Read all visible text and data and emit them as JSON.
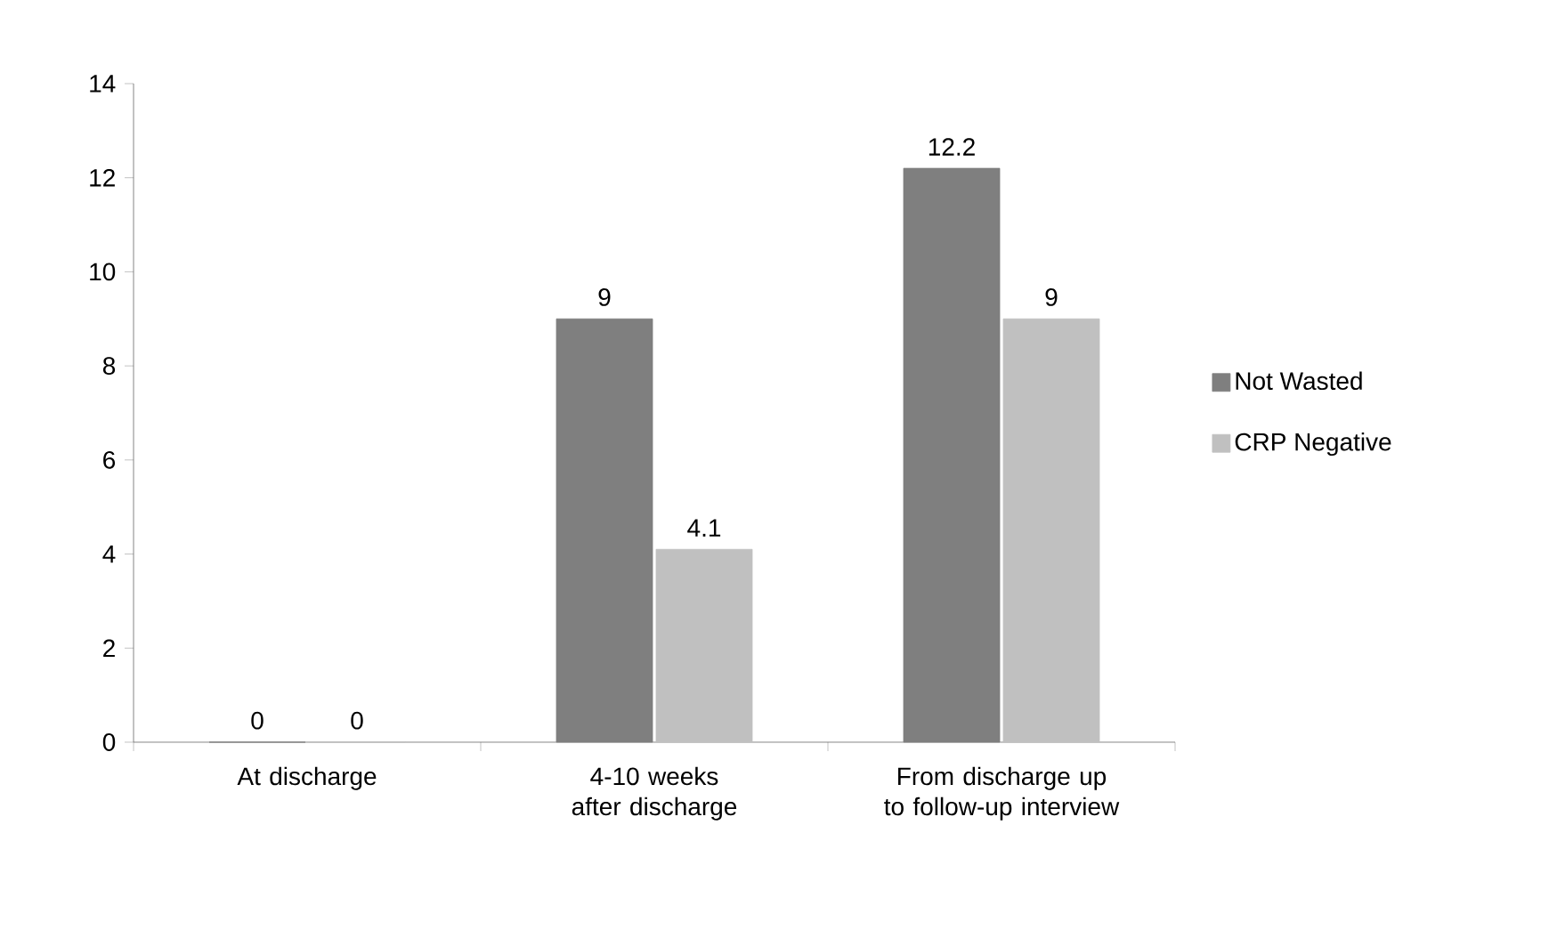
{
  "chart_data": {
    "type": "bar",
    "categories": [
      "At discharge",
      "4-10 weeks after discharge",
      "From discharge up to follow-up interview"
    ],
    "series": [
      {
        "name": "Not Wasted",
        "color": "#7f7f7f",
        "values": [
          0,
          9,
          12.2
        ]
      },
      {
        "name": "CRP Negative",
        "color": "#c0c0c0",
        "values": [
          0,
          4.1,
          9
        ]
      }
    ],
    "ylim": [
      0,
      14
    ],
    "yticks": [
      0,
      2,
      4,
      6,
      8,
      10,
      12,
      14
    ],
    "data_labels": true,
    "legend": "right",
    "grid": false
  }
}
